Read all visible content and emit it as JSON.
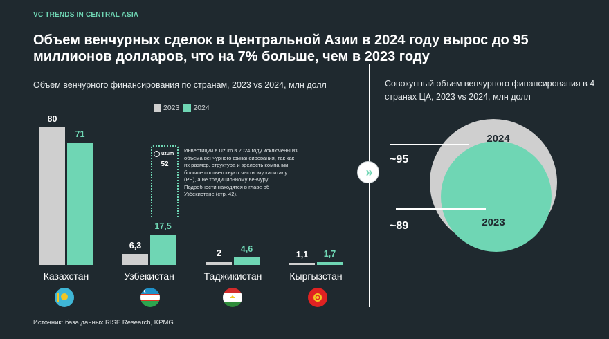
{
  "header": {
    "eyebrow": "VC TRENDS IN CENTRAL ASIA",
    "title": "Объем венчурных сделок в Центральной Азии в 2024 году вырос до 95 миллионов долларов, что на 7% больше, чем в 2023 году"
  },
  "left_chart": {
    "subtitle": "Объем венчурного финансирования по странам, 2023 vs 2024, млн долл",
    "legend": [
      "2023",
      "2024"
    ]
  },
  "right_chart": {
    "subtitle": "Совокупный объем венчурного финансирования в 4 странах ЦА, 2023 vs 2024, млн долл"
  },
  "uzum": {
    "logo_text": "uzum",
    "value": "52",
    "note": "Инвестиции в Uzum в 2024 году исключены из объема венчурного финансирования, так как их размер, структура и зрелость компании больше соответствуют частному капиталу (PE), а не традиционному венчуру. Подробности находятся в главе об Узбекистане (стр. 42)."
  },
  "source": "Источник: база данных RISE Research, KPMG",
  "colors": {
    "background": "#1f292f",
    "accent_2024": "#6fd6b4",
    "bar_2023": "#cfcfcf",
    "circle_2024": "#cfcfcf",
    "circle_2023": "#6fd6b4"
  },
  "icons": {
    "divider_arrow": "double-chevron-right-icon"
  },
  "chart_data": [
    {
      "type": "bar",
      "categories": [
        "Казахстан",
        "Узбекистан",
        "Таджикистан",
        "Кыргызстан"
      ],
      "series": [
        {
          "name": "2023",
          "values": [
            80,
            6.3,
            2,
            1.1
          ],
          "labels": [
            "80",
            "6,3",
            "2",
            "1,1"
          ]
        },
        {
          "name": "2024",
          "values": [
            71,
            17.5,
            4.6,
            1.7
          ],
          "labels": [
            "71",
            "17,5",
            "4,6",
            "1,7"
          ]
        }
      ],
      "title": "Объем венчурного финансирования по странам, 2023 vs 2024, млн долл",
      "ylim": [
        0,
        80
      ],
      "grid": false,
      "legend": "top-center"
    },
    {
      "type": "bubble",
      "categories": [
        "2024",
        "2023"
      ],
      "values": [
        95,
        89
      ],
      "labels": [
        "~95",
        "~89"
      ],
      "title": "Совокупный объем венчурного финансирования в 4 странах ЦА, 2023 vs 2024, млн долл"
    }
  ]
}
